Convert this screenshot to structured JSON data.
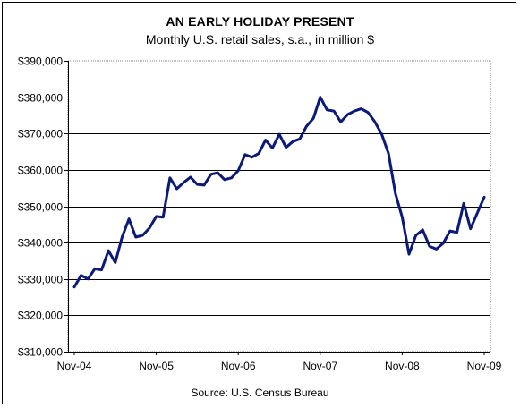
{
  "chart_data": {
    "type": "line",
    "title": "AN EARLY HOLIDAY PRESENT",
    "subtitle": "Monthly U.S. retail sales, s.a., in million $",
    "source": "Source:  U.S. Census Bureau",
    "xlabel": "",
    "ylabel": "",
    "ylim": [
      310000,
      390000
    ],
    "y_ticks": [
      310000,
      320000,
      330000,
      340000,
      350000,
      360000,
      370000,
      380000,
      390000
    ],
    "y_tick_labels": [
      "$310,000",
      "$320,000",
      "$330,000",
      "$340,000",
      "$350,000",
      "$360,000",
      "$370,000",
      "$380,000",
      "$390,000"
    ],
    "x_tick_labels": [
      "Nov-04",
      "Nov-05",
      "Nov-06",
      "Nov-07",
      "Nov-08",
      "Nov-09"
    ],
    "grid": "horizontal",
    "line_color": "#0b1a7a",
    "x": [
      "Nov-04",
      "Dec-04",
      "Jan-05",
      "Feb-05",
      "Mar-05",
      "Apr-05",
      "May-05",
      "Jun-05",
      "Jul-05",
      "Aug-05",
      "Sep-05",
      "Oct-05",
      "Nov-05",
      "Dec-05",
      "Jan-06",
      "Feb-06",
      "Mar-06",
      "Apr-06",
      "May-06",
      "Jun-06",
      "Jul-06",
      "Aug-06",
      "Sep-06",
      "Oct-06",
      "Nov-06",
      "Dec-06",
      "Jan-07",
      "Feb-07",
      "Mar-07",
      "Apr-07",
      "May-07",
      "Jun-07",
      "Jul-07",
      "Aug-07",
      "Sep-07",
      "Oct-07",
      "Nov-07",
      "Dec-07",
      "Jan-08",
      "Feb-08",
      "Mar-08",
      "Apr-08",
      "May-08",
      "Jun-08",
      "Jul-08",
      "Aug-08",
      "Sep-08",
      "Oct-08",
      "Nov-08",
      "Dec-08",
      "Jan-09",
      "Feb-09",
      "Mar-09",
      "Apr-09",
      "May-09",
      "Jun-09",
      "Jul-09",
      "Aug-09",
      "Sep-09",
      "Oct-09",
      "Nov-09"
    ],
    "values": [
      327800,
      331000,
      330000,
      332800,
      332500,
      337800,
      334500,
      341500,
      346500,
      341500,
      342000,
      344000,
      347200,
      347000,
      357800,
      354800,
      356500,
      358000,
      356000,
      355800,
      358800,
      359200,
      357300,
      357800,
      359800,
      364200,
      363500,
      364500,
      368200,
      366000,
      369800,
      366200,
      367800,
      368500,
      372000,
      374200,
      380000,
      376500,
      376200,
      373200,
      375200,
      376200,
      376800,
      375800,
      373200,
      369800,
      364500,
      353500,
      347000,
      336800,
      342000,
      343500,
      339000,
      338200,
      339800,
      343200,
      342800,
      350800,
      343800,
      348200,
      352500
    ]
  }
}
